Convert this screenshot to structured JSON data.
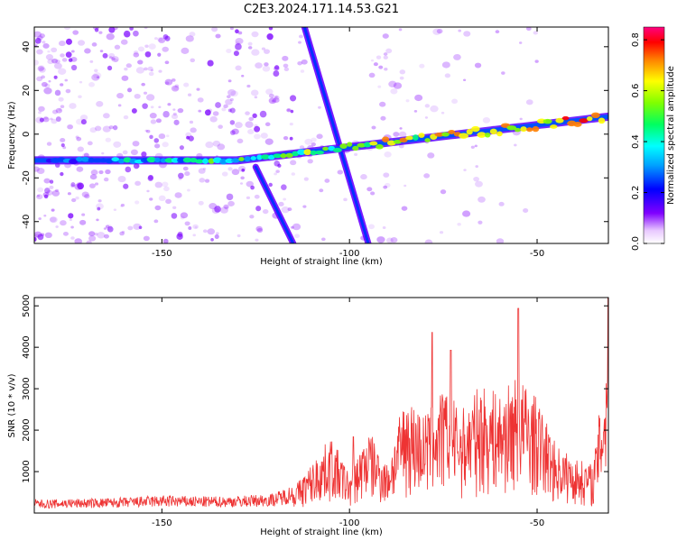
{
  "title": "C2E3.2024.171.14.53.G21",
  "colors": {
    "line": "#ee3333",
    "axis": "#000000",
    "background": "#ffffff"
  },
  "chart_data": [
    {
      "type": "heatmap",
      "xlabel": "Height of straight line (km)",
      "ylabel": "Frequency (Hz)",
      "xlim": [
        -184,
        -31
      ],
      "ylim": [
        -50,
        49
      ],
      "xticks": [
        -150,
        -100,
        -50
      ],
      "yticks": [
        -40,
        -20,
        0,
        20,
        40
      ],
      "grid": false,
      "colorbar": {
        "label": "Normalized spectral amplitude",
        "range": [
          0,
          0.85
        ],
        "ticks": [
          0.0,
          0.2,
          0.4,
          0.6,
          0.8
        ],
        "colormap": "rainbow (purple to red)"
      },
      "features": [
        {
          "x_start": -184,
          "x_end": -130,
          "y_start": -12,
          "y_end": -12
        },
        {
          "x_start": -130,
          "x_end": -31,
          "y_start": -12,
          "y_end": 8
        },
        {
          "x_start": -112,
          "x_end": -95,
          "y_start": 49,
          "y_end": -50
        },
        {
          "x_start": -125,
          "x_end": -115,
          "y_start": -15,
          "y_end": -50
        }
      ]
    },
    {
      "type": "line",
      "xlabel": "Height of straight line (km)",
      "ylabel": "SNR (10 * v/v)",
      "xlim": [
        -184,
        -31
      ],
      "ylim": [
        0,
        5200
      ],
      "xticks": [
        -150,
        -100,
        -50
      ],
      "yticks": [
        1000,
        2000,
        3000,
        4000,
        5000
      ],
      "grid": false,
      "series": [
        {
          "x": [
            -184,
            -180,
            -175,
            -170,
            -165,
            -160,
            -155,
            -150,
            -145,
            -140,
            -135,
            -130,
            -125,
            -120,
            -115,
            -110,
            -105,
            -100,
            -95,
            -90,
            -85,
            -80,
            -75,
            -70,
            -65,
            -60,
            -55,
            -50,
            -45,
            -40,
            -35,
            -32,
            -31
          ],
          "values": [
            250,
            240,
            260,
            260,
            270,
            280,
            300,
            320,
            310,
            300,
            300,
            310,
            330,
            360,
            520,
            1000,
            1550,
            800,
            1700,
            1000,
            2400,
            2000,
            2500,
            2100,
            2600,
            2400,
            2800,
            2300,
            1400,
            1100,
            1000,
            3000,
            4000
          ]
        }
      ],
      "peaks": [
        {
          "x": -99,
          "y": 1840
        },
        {
          "x": -78,
          "y": 4360
        },
        {
          "x": -73,
          "y": 3930
        },
        {
          "x": -55,
          "y": 4940
        },
        {
          "x": -31,
          "y": 5200
        }
      ]
    }
  ]
}
